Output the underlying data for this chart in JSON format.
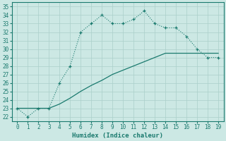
{
  "xlabel": "Humidex (Indice chaleur)",
  "bg_color": "#cce8e4",
  "line_color": "#1a7a6e",
  "grid_color": "#aacfca",
  "xlim": [
    -0.5,
    19.5
  ],
  "ylim": [
    21.5,
    35.5
  ],
  "xticks": [
    0,
    1,
    2,
    3,
    4,
    5,
    6,
    7,
    8,
    9,
    10,
    11,
    12,
    13,
    14,
    15,
    16,
    17,
    18,
    19
  ],
  "yticks": [
    22,
    23,
    24,
    25,
    26,
    27,
    28,
    29,
    30,
    31,
    32,
    33,
    34,
    35
  ],
  "line1_x": [
    0,
    1,
    2,
    3,
    4,
    5,
    6,
    7,
    8,
    9,
    10,
    11,
    12,
    13,
    14,
    15,
    16,
    17,
    18,
    19
  ],
  "line1_y": [
    23,
    22,
    23,
    23,
    26,
    28,
    32,
    33,
    34,
    33,
    33,
    33.5,
    34.5,
    33,
    32.5,
    32.5,
    31.5,
    30,
    29,
    29
  ],
  "line2_x": [
    0,
    2,
    3,
    4,
    5,
    6,
    7,
    8,
    9,
    10,
    11,
    12,
    13,
    14,
    15,
    16,
    17,
    18,
    19
  ],
  "line2_y": [
    23,
    23,
    23,
    23.5,
    24.2,
    25,
    25.7,
    26.3,
    27,
    27.5,
    28,
    28.5,
    29,
    29.5,
    29.5,
    29.5,
    29.5,
    29.5,
    29.5
  ]
}
